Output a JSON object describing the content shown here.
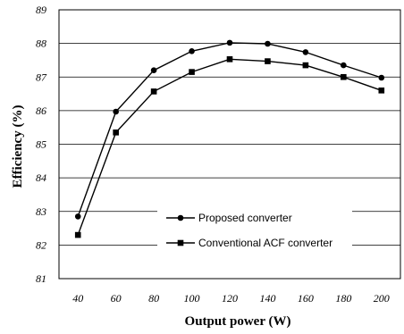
{
  "chart_data": {
    "type": "line",
    "title": "",
    "xlabel": "Output power (W)",
    "ylabel": "Efficiency (%)",
    "x": [
      40,
      60,
      80,
      100,
      120,
      140,
      160,
      180,
      200
    ],
    "x_ticks": [
      "40",
      "60",
      "80",
      "100",
      "120",
      "140",
      "160",
      "180",
      "200"
    ],
    "y_ticks": [
      "81",
      "82",
      "83",
      "84",
      "85",
      "86",
      "87",
      "88",
      "89"
    ],
    "xlim": [
      30,
      210
    ],
    "ylim": [
      81,
      89
    ],
    "grid": "horizontal",
    "legend_placement": "bottom-right",
    "series": [
      {
        "name": "Proposed converter",
        "marker": "circle",
        "color": "#000000",
        "values": [
          82.85,
          85.97,
          87.2,
          87.77,
          88.02,
          87.99,
          87.74,
          87.35,
          86.98
        ]
      },
      {
        "name": "Conventional ACF converter",
        "marker": "square",
        "color": "#000000",
        "values": [
          82.3,
          85.35,
          86.57,
          87.15,
          87.53,
          87.47,
          87.35,
          87.0,
          86.6
        ]
      }
    ]
  }
}
